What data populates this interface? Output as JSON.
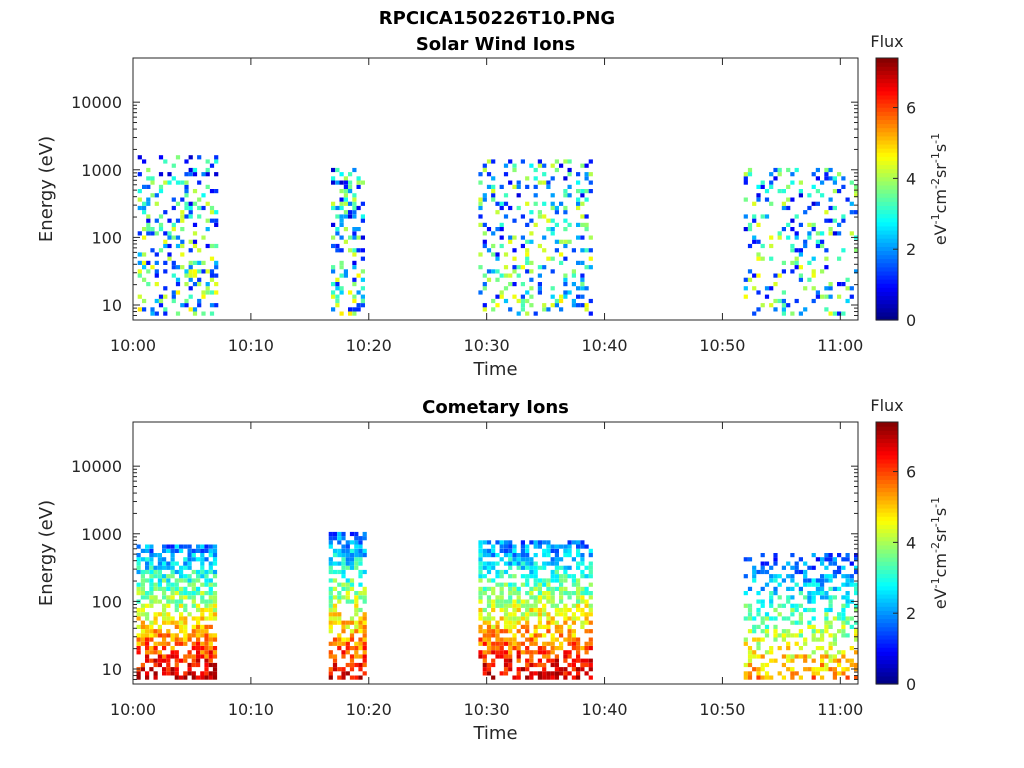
{
  "figure": {
    "title": "RPCICA150226T10.PNG"
  },
  "colors": {
    "colormap": "jet",
    "background": "#ffffff",
    "axis": "#262626"
  },
  "chart_data": [
    {
      "type": "heatmap",
      "title": "Solar Wind Ions",
      "xlabel": "Time",
      "ylabel": "Energy (eV)",
      "x_ticks": [
        "10:00",
        "10:10",
        "10:20",
        "10:30",
        "10:40",
        "10:50",
        "11:00"
      ],
      "y_scale": "log",
      "y_ticks": [
        "10",
        "100",
        "1000",
        "10000"
      ],
      "xlim_minutes_after_10_00": [
        0,
        61.5
      ],
      "ylim": [
        6,
        45000
      ],
      "colorbar": {
        "label": "Flux",
        "unit": "eV-1cm-2sr-1s-1",
        "ticks": [
          "0",
          "2",
          "4",
          "6"
        ],
        "range": [
          0,
          7.4
        ]
      },
      "grid": false,
      "bursts": [
        {
          "start_minutes": 0.4,
          "end_minutes": 7.0,
          "energy_range": [
            7,
            1600
          ],
          "peak_flux": 4.5,
          "density": 0.6
        },
        {
          "start_minutes": 16.8,
          "end_minutes": 19.6,
          "energy_range": [
            7,
            1000
          ],
          "peak_flux": 4.5,
          "density": 0.7
        },
        {
          "start_minutes": 29.3,
          "end_minutes": 38.8,
          "energy_range": [
            7,
            1500
          ],
          "peak_flux": 4.8,
          "density": 0.5
        },
        {
          "start_minutes": 51.8,
          "end_minutes": 61.3,
          "energy_range": [
            7,
            1000
          ],
          "peak_flux": 4.2,
          "density": 0.4
        }
      ]
    },
    {
      "type": "heatmap",
      "title": "Cometary Ions",
      "xlabel": "Time",
      "ylabel": "Energy (eV)",
      "x_ticks": [
        "10:00",
        "10:10",
        "10:20",
        "10:30",
        "10:40",
        "10:50",
        "11:00"
      ],
      "y_scale": "log",
      "y_ticks": [
        "10",
        "100",
        "1000",
        "10000"
      ],
      "xlim_minutes_after_10_00": [
        0,
        61.5
      ],
      "ylim": [
        6,
        45000
      ],
      "colorbar": {
        "label": "Flux",
        "unit": "eV-1cm-2sr-1s-1",
        "ticks": [
          "0",
          "2",
          "4",
          "6"
        ],
        "range": [
          0,
          7.4
        ]
      },
      "grid": false,
      "bursts": [
        {
          "start_minutes": 0.3,
          "end_minutes": 7.0,
          "energy_range": [
            7,
            700
          ],
          "peak_flux": 7.0,
          "density": 0.9
        },
        {
          "start_minutes": 16.6,
          "end_minutes": 19.6,
          "energy_range": [
            7,
            1000
          ],
          "peak_flux": 6.8,
          "density": 0.9
        },
        {
          "start_minutes": 29.3,
          "end_minutes": 38.8,
          "energy_range": [
            7,
            800
          ],
          "peak_flux": 7.0,
          "density": 0.85
        },
        {
          "start_minutes": 51.8,
          "end_minutes": 61.3,
          "energy_range": [
            7,
            500
          ],
          "peak_flux": 5.5,
          "density": 0.6
        }
      ]
    }
  ]
}
